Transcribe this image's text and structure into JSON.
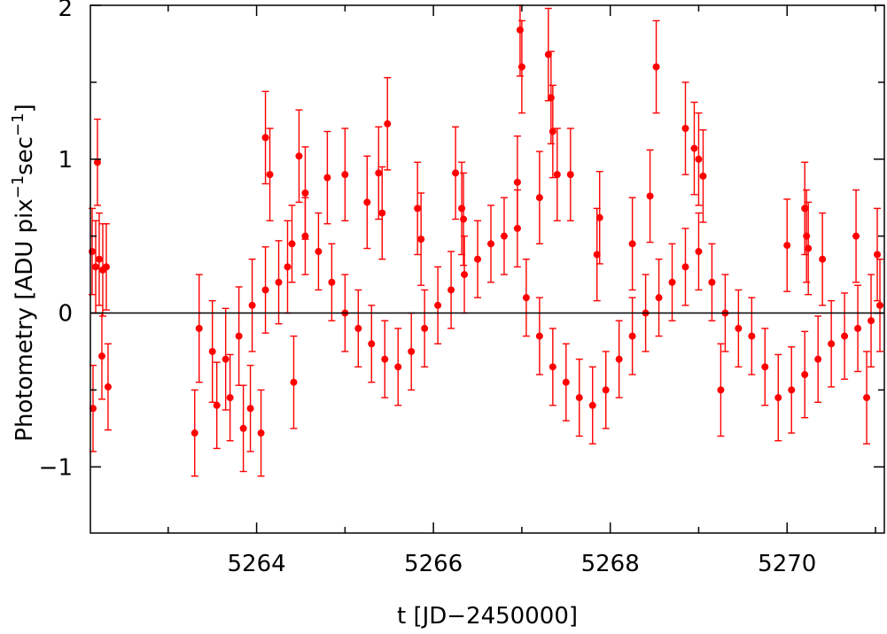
{
  "chart_data": {
    "type": "scatter",
    "xlabel": "t  [JD−2450000]",
    "ylabel": "Photometry  [ADU pix",
    "ylabel_sup1": "−1",
    "ylabel_mid": "sec",
    "ylabel_sup2": "−1",
    "ylabel_end": "]",
    "xlim": [
      5262.12,
      5271.1
    ],
    "ylim": [
      -1.43,
      2.0
    ],
    "x_major_ticks": [
      5264,
      5266,
      5268,
      5270
    ],
    "x_minor_ticks": [
      5263,
      5265,
      5267,
      5269,
      5271
    ],
    "x_tick_labels": [
      "5264",
      "5266",
      "5268",
      "5270"
    ],
    "y_ticks": [
      -1,
      0,
      1,
      2
    ],
    "y_tick_labels": [
      "−1",
      "0",
      "1",
      "2"
    ],
    "reference_line_y": 0,
    "grid": false,
    "legend": "none",
    "marker_color": "#ff0000",
    "series": [
      {
        "x": [
          5262.14,
          5262.18,
          5262.22,
          5262.26,
          5262.3,
          5263.35,
          5263.5,
          5263.65,
          5263.8,
          5263.95,
          5264.1,
          5264.25,
          5264.4,
          5264.55,
          5264.7,
          5264.85,
          5265.0,
          5265.15,
          5265.3,
          5265.45,
          5265.6,
          5265.75,
          5265.9,
          5266.05,
          5266.2,
          5266.35,
          5266.5,
          5266.65,
          5266.8,
          5266.95,
          5267.05,
          5267.2,
          5267.35,
          5267.5,
          5267.65,
          5267.8,
          5267.95,
          5268.1,
          5268.25,
          5268.4,
          5268.55,
          5268.7,
          5268.85,
          5269.0,
          5269.15,
          5269.3,
          5269.45,
          5269.6,
          5269.75,
          5269.9,
          5270.05,
          5270.2,
          5270.35,
          5270.5,
          5270.65,
          5270.8,
          5270.95,
          5271.05
        ],
        "y": [
          0.4,
          0.3,
          0.35,
          0.28,
          0.3,
          -0.1,
          -0.25,
          -0.3,
          -0.15,
          0.05,
          0.15,
          0.2,
          0.45,
          0.5,
          0.4,
          0.2,
          0.0,
          -0.1,
          -0.2,
          -0.3,
          -0.35,
          -0.25,
          -0.1,
          0.05,
          0.15,
          0.25,
          0.35,
          0.45,
          0.5,
          0.55,
          0.1,
          -0.15,
          -0.35,
          -0.45,
          -0.55,
          -0.6,
          -0.5,
          -0.3,
          -0.15,
          0.0,
          0.1,
          0.2,
          0.3,
          0.4,
          0.2,
          0.0,
          -0.1,
          -0.15,
          -0.35,
          -0.55,
          -0.5,
          -0.4,
          -0.3,
          -0.2,
          -0.15,
          -0.1,
          -0.05,
          0.05
        ],
        "err": [
          0.28,
          0.3,
          0.3,
          0.3,
          0.28,
          0.35,
          0.33,
          0.33,
          0.32,
          0.3,
          0.28,
          0.27,
          0.25,
          0.25,
          0.25,
          0.25,
          0.25,
          0.25,
          0.25,
          0.25,
          0.25,
          0.25,
          0.25,
          0.25,
          0.25,
          0.25,
          0.25,
          0.25,
          0.25,
          0.25,
          0.25,
          0.25,
          0.25,
          0.25,
          0.25,
          0.25,
          0.25,
          0.25,
          0.25,
          0.25,
          0.25,
          0.25,
          0.25,
          0.25,
          0.25,
          0.25,
          0.25,
          0.25,
          0.25,
          0.28,
          0.28,
          0.28,
          0.28,
          0.28,
          0.28,
          0.28,
          0.3,
          0.3
        ]
      },
      {
        "x": [
          5262.2,
          5262.25,
          5262.15,
          5262.32,
          5263.3,
          5263.55,
          5263.7,
          5263.85,
          5263.93,
          5264.05,
          5264.1,
          5264.15,
          5264.35,
          5264.42,
          5264.48,
          5264.55,
          5264.8,
          5265.0,
          5265.25,
          5265.38,
          5265.42,
          5265.48,
          5265.82,
          5265.86,
          5266.25,
          5266.32,
          5266.34,
          5266.95,
          5266.98,
          5267.0,
          5267.2,
          5267.3,
          5267.33,
          5267.35,
          5267.4,
          5267.55,
          5267.85,
          5267.88,
          5268.25,
          5268.45,
          5268.52,
          5268.85,
          5268.95,
          5269.0,
          5269.05,
          5269.25,
          5270.0,
          5270.2,
          5270.22,
          5270.24,
          5270.4,
          5270.78,
          5270.9,
          5271.02
        ],
        "y": [
          0.98,
          -0.28,
          -0.62,
          -0.48,
          -0.78,
          -0.6,
          -0.55,
          -0.75,
          -0.62,
          -0.78,
          1.14,
          0.9,
          0.3,
          -0.45,
          1.02,
          0.78,
          0.88,
          0.9,
          0.72,
          0.91,
          0.65,
          1.23,
          0.68,
          0.48,
          0.91,
          0.68,
          0.61,
          0.85,
          1.84,
          1.6,
          0.75,
          1.68,
          1.4,
          1.18,
          0.9,
          0.9,
          0.38,
          0.62,
          0.45,
          0.76,
          1.6,
          1.2,
          1.07,
          1.0,
          0.89,
          -0.5,
          0.44,
          0.68,
          0.5,
          0.42,
          0.35,
          0.5,
          -0.55,
          0.38
        ],
        "err": [
          0.28,
          0.28,
          0.28,
          0.28,
          0.28,
          0.28,
          0.28,
          0.28,
          0.28,
          0.28,
          0.3,
          0.3,
          0.3,
          0.3,
          0.3,
          0.3,
          0.3,
          0.3,
          0.3,
          0.3,
          0.3,
          0.3,
          0.3,
          0.3,
          0.3,
          0.3,
          0.3,
          0.3,
          0.3,
          0.3,
          0.3,
          0.3,
          0.3,
          0.3,
          0.3,
          0.3,
          0.3,
          0.3,
          0.3,
          0.3,
          0.3,
          0.3,
          0.3,
          0.3,
          0.3,
          0.3,
          0.3,
          0.3,
          0.3,
          0.3,
          0.3,
          0.3,
          0.3,
          0.3
        ]
      }
    ]
  }
}
